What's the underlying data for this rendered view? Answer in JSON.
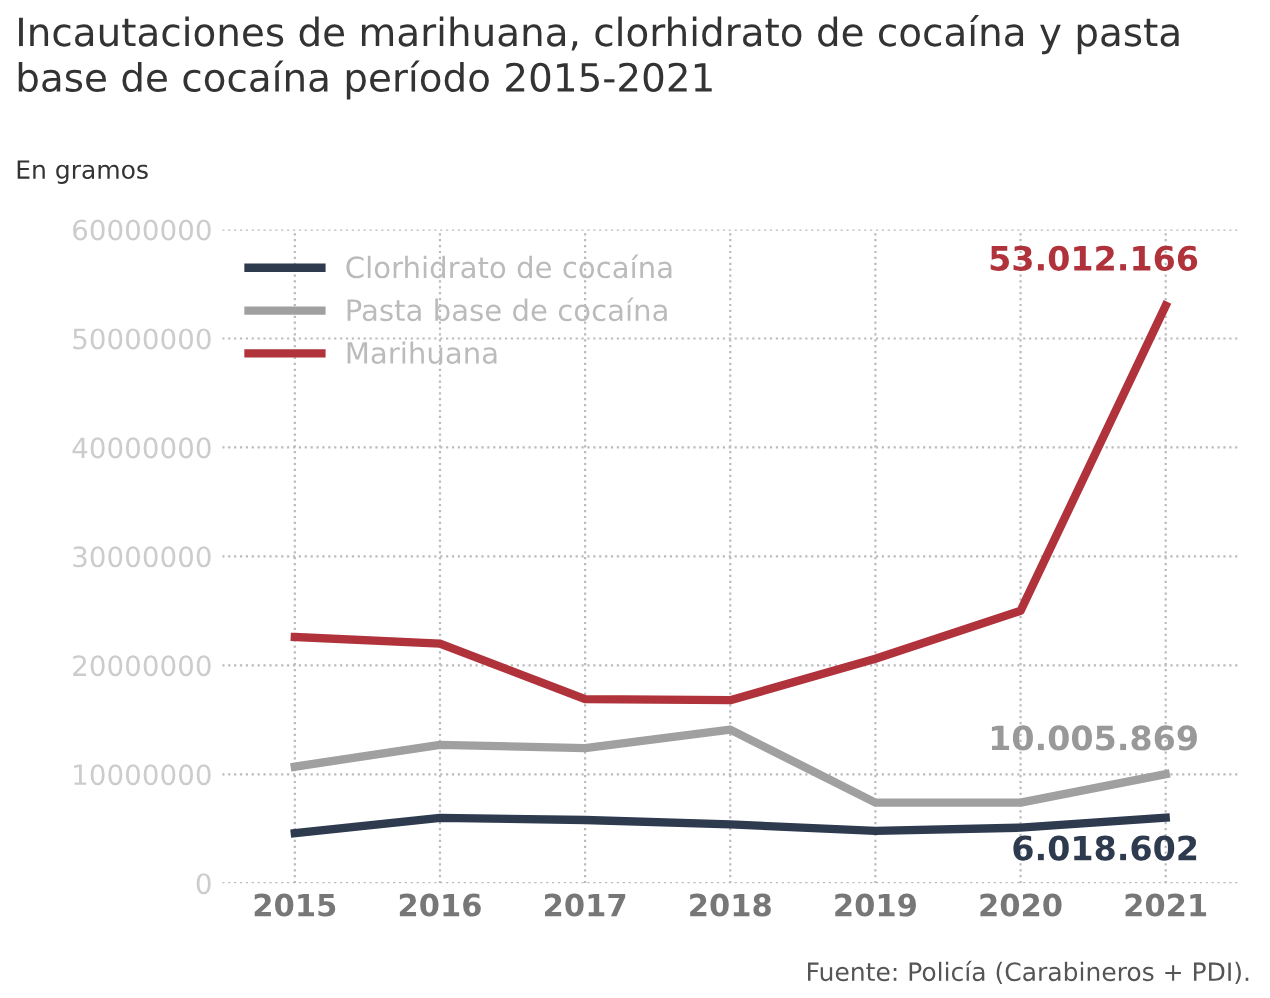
{
  "chart_data": {
    "type": "line",
    "title": "Incautaciones de marihuana, clorhidrato de cocaína y pasta base de cocaína período 2015-2021",
    "subtitle": "En gramos",
    "categories": [
      "2015",
      "2016",
      "2017",
      "2018",
      "2019",
      "2020",
      "2021"
    ],
    "series": [
      {
        "name": "Clorhidrato de cocaína",
        "color": "#2e3a4e",
        "values": [
          4600000,
          6000000,
          5800000,
          5400000,
          4800000,
          5100000,
          6018602
        ]
      },
      {
        "name": "Pasta base de cocaína",
        "color": "#a0a0a0",
        "values": [
          10700000,
          12700000,
          12400000,
          14100000,
          7400000,
          7400000,
          10005869
        ]
      },
      {
        "name": "Marihuana",
        "color": "#b0323a",
        "values": [
          22600000,
          22000000,
          16900000,
          16800000,
          20600000,
          25000000,
          53012166
        ]
      }
    ],
    "ylim": [
      0,
      60000000
    ],
    "yticks": [
      0,
      10000000,
      20000000,
      30000000,
      40000000,
      50000000,
      60000000
    ],
    "grid": true,
    "legend": "top left",
    "line_style": "solid",
    "marker": "none",
    "annotations": [
      {
        "text": "53.012.166",
        "x": "2021",
        "y": 53012166
      },
      {
        "text": "10.005.869",
        "x": "2021",
        "y": 10005869
      },
      {
        "text": "6.018.602",
        "x": "2021",
        "y": 6018602
      },
      "Fuente: Policía (Carabineros + PDI)."
    ]
  }
}
